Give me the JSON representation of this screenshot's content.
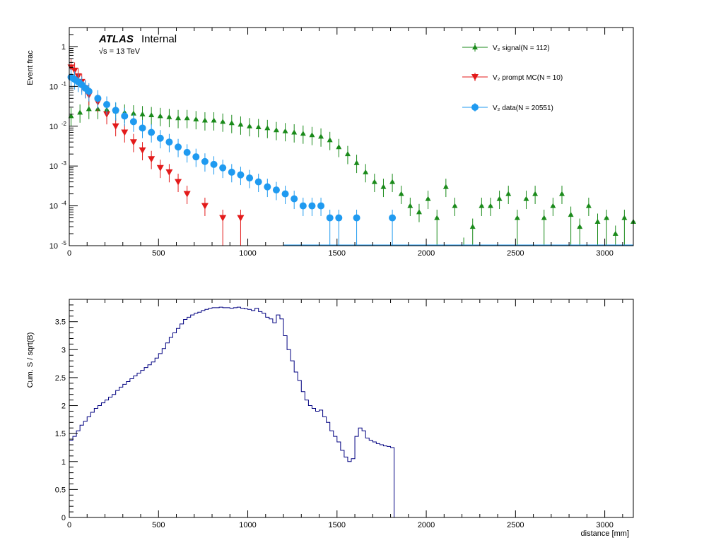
{
  "chart_data": [
    {
      "type": "scatter",
      "panel": "top",
      "ylabel": "Event frac",
      "yscale": "log",
      "ylim": [
        1e-05,
        3
      ],
      "xlim": [
        0,
        3160
      ],
      "x_ticks": [
        "0",
        "500",
        "1000",
        "1500",
        "2000",
        "2500",
        "3000"
      ],
      "y_ticks": [
        {
          "v": 1e-05,
          "base": "10",
          "exp": "-5"
        },
        {
          "v": 0.0001,
          "base": "10",
          "exp": "-4"
        },
        {
          "v": 0.001,
          "base": "10",
          "exp": "-3"
        },
        {
          "v": 0.01,
          "base": "10",
          "exp": "-2"
        },
        {
          "v": 0.1,
          "base": "10",
          "exp": "-1"
        },
        {
          "v": 1,
          "base": "1",
          "exp": ""
        }
      ],
      "atlas_label": "ATLAS",
      "atlas_status": "Internal",
      "energy_sqrt": "√s",
      "energy_text": " = 13 TeV",
      "legend_position": "top-right",
      "bin_width": 20,
      "series": [
        {
          "name": "V₂ signal(N = 112)",
          "color": "#1a8a1a",
          "marker": "triangle-up",
          "points": [
            [
              0,
              0.018
            ],
            [
              50,
              0.022
            ],
            [
              100,
              0.027
            ],
            [
              150,
              0.027
            ],
            [
              200,
              0.026
            ],
            [
              250,
              0.024
            ],
            [
              300,
              0.022
            ],
            [
              350,
              0.021
            ],
            [
              400,
              0.02
            ],
            [
              450,
              0.019
            ],
            [
              500,
              0.018
            ],
            [
              550,
              0.017
            ],
            [
              600,
              0.016
            ],
            [
              650,
              0.016
            ],
            [
              700,
              0.015
            ],
            [
              750,
              0.014
            ],
            [
              800,
              0.014
            ],
            [
              850,
              0.013
            ],
            [
              900,
              0.012
            ],
            [
              950,
              0.011
            ],
            [
              1000,
              0.01
            ],
            [
              1050,
              0.0095
            ],
            [
              1100,
              0.009
            ],
            [
              1150,
              0.008
            ],
            [
              1200,
              0.0075
            ],
            [
              1250,
              0.007
            ],
            [
              1300,
              0.0065
            ],
            [
              1350,
              0.006
            ],
            [
              1400,
              0.0055
            ],
            [
              1450,
              0.0045
            ],
            [
              1500,
              0.003
            ],
            [
              1550,
              0.002
            ],
            [
              1600,
              0.0012
            ],
            [
              1650,
              0.0007
            ],
            [
              1700,
              0.0004
            ],
            [
              1750,
              0.0003
            ],
            [
              1800,
              0.0004
            ],
            [
              1850,
              0.0002
            ],
            [
              1900,
              0.0001
            ],
            [
              1950,
              7e-05
            ],
            [
              2000,
              0.00015
            ],
            [
              2050,
              5e-05
            ],
            [
              2100,
              0.0003
            ],
            [
              2150,
              0.0001
            ],
            [
              2200,
              1e-05
            ],
            [
              2250,
              3e-05
            ],
            [
              2300,
              0.0001
            ],
            [
              2350,
              0.0001
            ],
            [
              2400,
              0.00015
            ],
            [
              2450,
              0.0002
            ],
            [
              2500,
              5e-05
            ],
            [
              2550,
              0.00015
            ],
            [
              2600,
              0.0002
            ],
            [
              2650,
              5e-05
            ],
            [
              2700,
              0.0001
            ],
            [
              2750,
              0.0002
            ],
            [
              2800,
              6e-05
            ],
            [
              2850,
              3e-05
            ],
            [
              2900,
              0.0001
            ],
            [
              2950,
              4e-05
            ],
            [
              3000,
              5e-05
            ],
            [
              3050,
              2e-05
            ],
            [
              3100,
              5e-05
            ],
            [
              3150,
              4e-05
            ]
          ]
        },
        {
          "name": "V₂ prompt MC(N = 10)",
          "color": "#e31a1a",
          "marker": "triangle-down",
          "points": [
            [
              0,
              0.3
            ],
            [
              20,
              0.25
            ],
            [
              40,
              0.18
            ],
            [
              60,
              0.13
            ],
            [
              80,
              0.09
            ],
            [
              100,
              0.06
            ],
            [
              150,
              0.04
            ],
            [
              200,
              0.02
            ],
            [
              250,
              0.01
            ],
            [
              300,
              0.007
            ],
            [
              350,
              0.004
            ],
            [
              400,
              0.0025
            ],
            [
              450,
              0.0015
            ],
            [
              500,
              0.0009
            ],
            [
              550,
              0.0007
            ],
            [
              600,
              0.0004
            ],
            [
              650,
              0.0002
            ],
            [
              750,
              0.0001
            ],
            [
              850,
              5e-05
            ],
            [
              950,
              5e-05
            ]
          ]
        },
        {
          "name": "V₂ data(N = 20551)",
          "color": "#1f9af0",
          "marker": "circle",
          "points": [
            [
              0,
              0.17
            ],
            [
              20,
              0.15
            ],
            [
              40,
              0.13
            ],
            [
              60,
              0.11
            ],
            [
              80,
              0.09
            ],
            [
              100,
              0.075
            ],
            [
              150,
              0.05
            ],
            [
              200,
              0.035
            ],
            [
              250,
              0.025
            ],
            [
              300,
              0.018
            ],
            [
              350,
              0.013
            ],
            [
              400,
              0.009
            ],
            [
              450,
              0.007
            ],
            [
              500,
              0.005
            ],
            [
              550,
              0.004
            ],
            [
              600,
              0.003
            ],
            [
              650,
              0.0022
            ],
            [
              700,
              0.0017
            ],
            [
              750,
              0.0013
            ],
            [
              800,
              0.0011
            ],
            [
              850,
              0.0009
            ],
            [
              900,
              0.0007
            ],
            [
              950,
              0.0006
            ],
            [
              1000,
              0.0005
            ],
            [
              1050,
              0.0004
            ],
            [
              1100,
              0.0003
            ],
            [
              1150,
              0.00025
            ],
            [
              1200,
              0.0002
            ],
            [
              1250,
              0.00015
            ],
            [
              1300,
              0.0001
            ],
            [
              1350,
              0.0001
            ],
            [
              1400,
              0.0001
            ],
            [
              1450,
              5e-05
            ],
            [
              1500,
              5e-05
            ],
            [
              1600,
              5e-05
            ],
            [
              1800,
              5e-05
            ]
          ]
        }
      ]
    },
    {
      "type": "line",
      "panel": "bottom",
      "title": "",
      "xlabel": "distance [mm]",
      "ylabel": "Cum. S / sqrt(B)",
      "xlim": [
        0,
        3160
      ],
      "ylim": [
        0,
        3.9
      ],
      "x_ticks": [
        "0",
        "500",
        "1000",
        "1500",
        "2000",
        "2500",
        "3000"
      ],
      "y_ticks": [
        "0",
        "0.5",
        "1",
        "1.5",
        "2",
        "2.5",
        "3",
        "3.5"
      ],
      "color": "#000080",
      "x": [
        0,
        20,
        40,
        60,
        80,
        100,
        120,
        140,
        160,
        180,
        200,
        220,
        240,
        260,
        280,
        300,
        320,
        340,
        360,
        380,
        400,
        420,
        440,
        460,
        480,
        500,
        520,
        540,
        560,
        580,
        600,
        620,
        640,
        660,
        680,
        700,
        720,
        740,
        760,
        780,
        800,
        820,
        840,
        860,
        880,
        900,
        920,
        940,
        960,
        980,
        1000,
        1020,
        1040,
        1060,
        1080,
        1100,
        1120,
        1140,
        1160,
        1180,
        1200,
        1220,
        1240,
        1260,
        1280,
        1300,
        1320,
        1340,
        1360,
        1380,
        1400,
        1420,
        1440,
        1460,
        1480,
        1500,
        1520,
        1540,
        1560,
        1580,
        1600,
        1620,
        1640,
        1660,
        1680,
        1700,
        1720,
        1740,
        1760,
        1780,
        1800
      ],
      "values": [
        1.38,
        1.45,
        1.55,
        1.65,
        1.72,
        1.8,
        1.88,
        1.95,
        2.0,
        2.05,
        2.1,
        2.15,
        2.2,
        2.27,
        2.33,
        2.38,
        2.43,
        2.48,
        2.53,
        2.58,
        2.63,
        2.68,
        2.73,
        2.78,
        2.85,
        2.93,
        3.02,
        3.12,
        3.22,
        3.3,
        3.38,
        3.46,
        3.54,
        3.58,
        3.62,
        3.65,
        3.67,
        3.7,
        3.72,
        3.74,
        3.75,
        3.75,
        3.76,
        3.75,
        3.75,
        3.74,
        3.75,
        3.76,
        3.74,
        3.73,
        3.72,
        3.7,
        3.74,
        3.68,
        3.65,
        3.58,
        3.55,
        3.48,
        3.62,
        3.55,
        3.25,
        3.0,
        2.8,
        2.6,
        2.45,
        2.25,
        2.1,
        2.0,
        1.95,
        1.9,
        1.92,
        1.8,
        1.7,
        1.55,
        1.45,
        1.35,
        1.2,
        1.08,
        1.0,
        1.05,
        1.45,
        1.6,
        1.55,
        1.42,
        1.38,
        1.35,
        1.32,
        1.3,
        1.28,
        1.27,
        1.25
      ]
    }
  ]
}
